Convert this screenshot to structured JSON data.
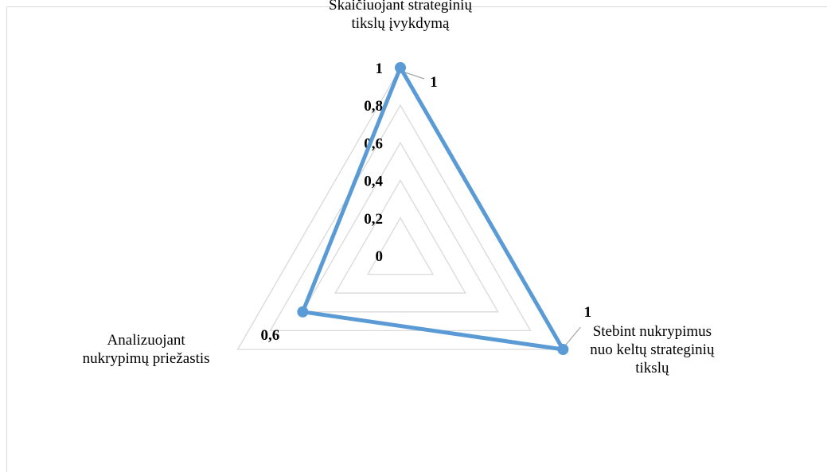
{
  "chart_data": {
    "type": "radar",
    "categories": [
      [
        "Skaičiuojant strateginių",
        "tikslų įvykdymą"
      ],
      [
        "Stebint nukrypimus",
        "nuo keltų strateginių",
        "tikslų"
      ],
      [
        "Analizuojant",
        "nukrypimų priežastis"
      ]
    ],
    "series": [
      {
        "values": [
          1,
          1,
          0.6
        ]
      }
    ],
    "data_labels": [
      "1",
      "1",
      "0,6"
    ],
    "axis_ticks": [
      "0",
      "0,2",
      "0,4",
      "0,6",
      "0,8",
      "1"
    ],
    "rlim": [
      0,
      1
    ],
    "grid": true,
    "legend": "none",
    "colors": {
      "series": "#5b9bd5",
      "grid": "#d9d9d9",
      "leader": "#a6a6a6"
    }
  }
}
